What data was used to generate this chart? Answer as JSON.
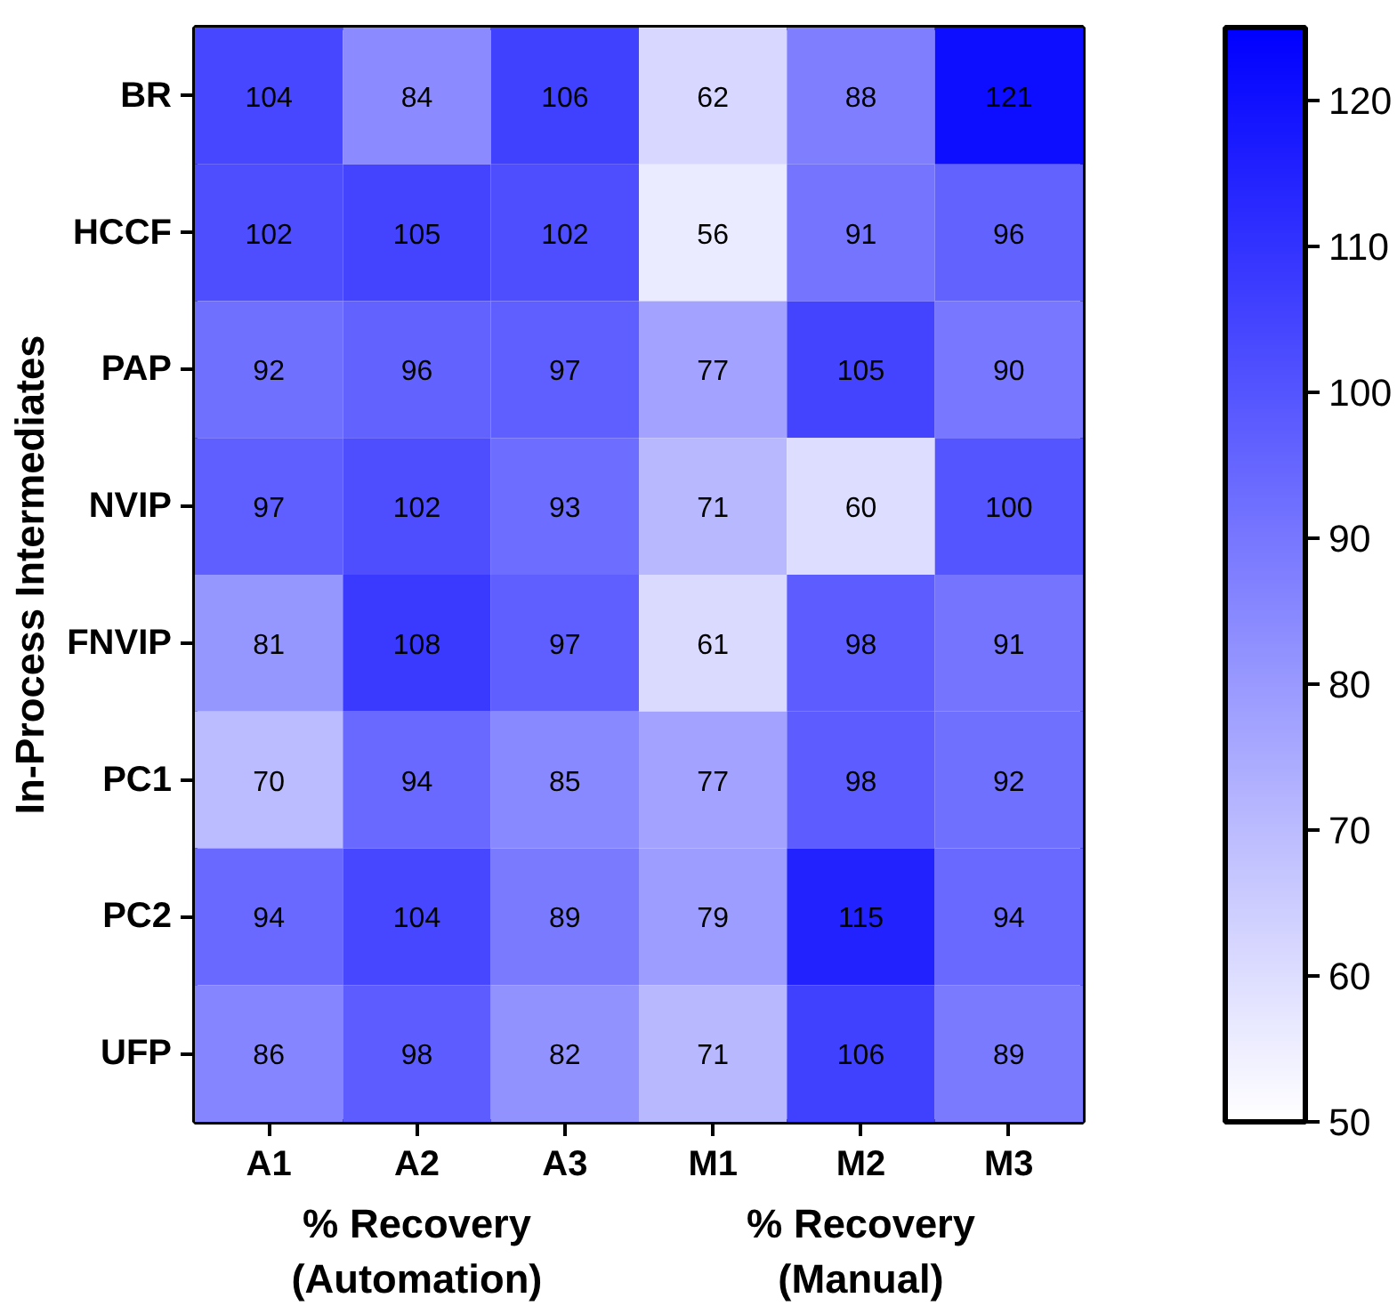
{
  "chart_data": {
    "type": "heatmap",
    "ylabel": "In-Process Intermediates",
    "categories": [
      "A1",
      "A2",
      "A3",
      "M1",
      "M2",
      "M3"
    ],
    "y_categories": [
      "BR",
      "HCCF",
      "PAP",
      "NVIP",
      "FNVIP",
      "PC1",
      "PC2",
      "UFP"
    ],
    "cells": [
      [
        104,
        84,
        106,
        62,
        88,
        121
      ],
      [
        102,
        105,
        102,
        56,
        91,
        96
      ],
      [
        92,
        96,
        97,
        77,
        105,
        90
      ],
      [
        97,
        102,
        93,
        71,
        60,
        100
      ],
      [
        81,
        108,
        97,
        61,
        98,
        91
      ],
      [
        70,
        94,
        85,
        77,
        98,
        92
      ],
      [
        94,
        104,
        89,
        79,
        115,
        94
      ],
      [
        86,
        98,
        82,
        71,
        106,
        89
      ]
    ],
    "data_labels": true,
    "clim": [
      50,
      125
    ],
    "cticks": [
      50,
      60,
      70,
      80,
      90,
      100,
      110,
      120
    ],
    "annotations": [
      "% Recovery\n(Automation)",
      "% Recovery\n(Manual)"
    ]
  }
}
